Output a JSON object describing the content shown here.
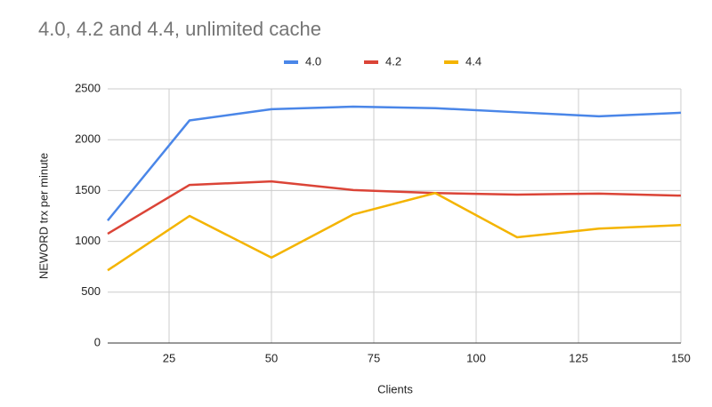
{
  "chart_data": {
    "type": "line",
    "title": "4.0, 4.2 and 4.4, unlimited cache",
    "x_label": "Clients",
    "y_label": "NEWORD trx per minute",
    "x": [
      10,
      30,
      50,
      70,
      90,
      110,
      130,
      150
    ],
    "series": [
      {
        "name": "4.0",
        "color": "#4a86e8",
        "values": [
          1205,
          2190,
          2300,
          2325,
          2310,
          2270,
          2230,
          2265
        ]
      },
      {
        "name": "4.2",
        "color": "#db4437",
        "values": [
          1075,
          1555,
          1590,
          1505,
          1475,
          1460,
          1470,
          1450
        ]
      },
      {
        "name": "4.4",
        "color": "#f4b400",
        "values": [
          715,
          1250,
          840,
          1265,
          1475,
          1040,
          1125,
          1160
        ]
      }
    ],
    "xlim": [
      10,
      150
    ],
    "xticks": [
      25,
      50,
      75,
      100,
      125,
      150
    ],
    "ylim": [
      0,
      2500
    ],
    "yticks": [
      0,
      500,
      1000,
      1500,
      2000,
      2500
    ],
    "grid": true,
    "legend": "top"
  }
}
